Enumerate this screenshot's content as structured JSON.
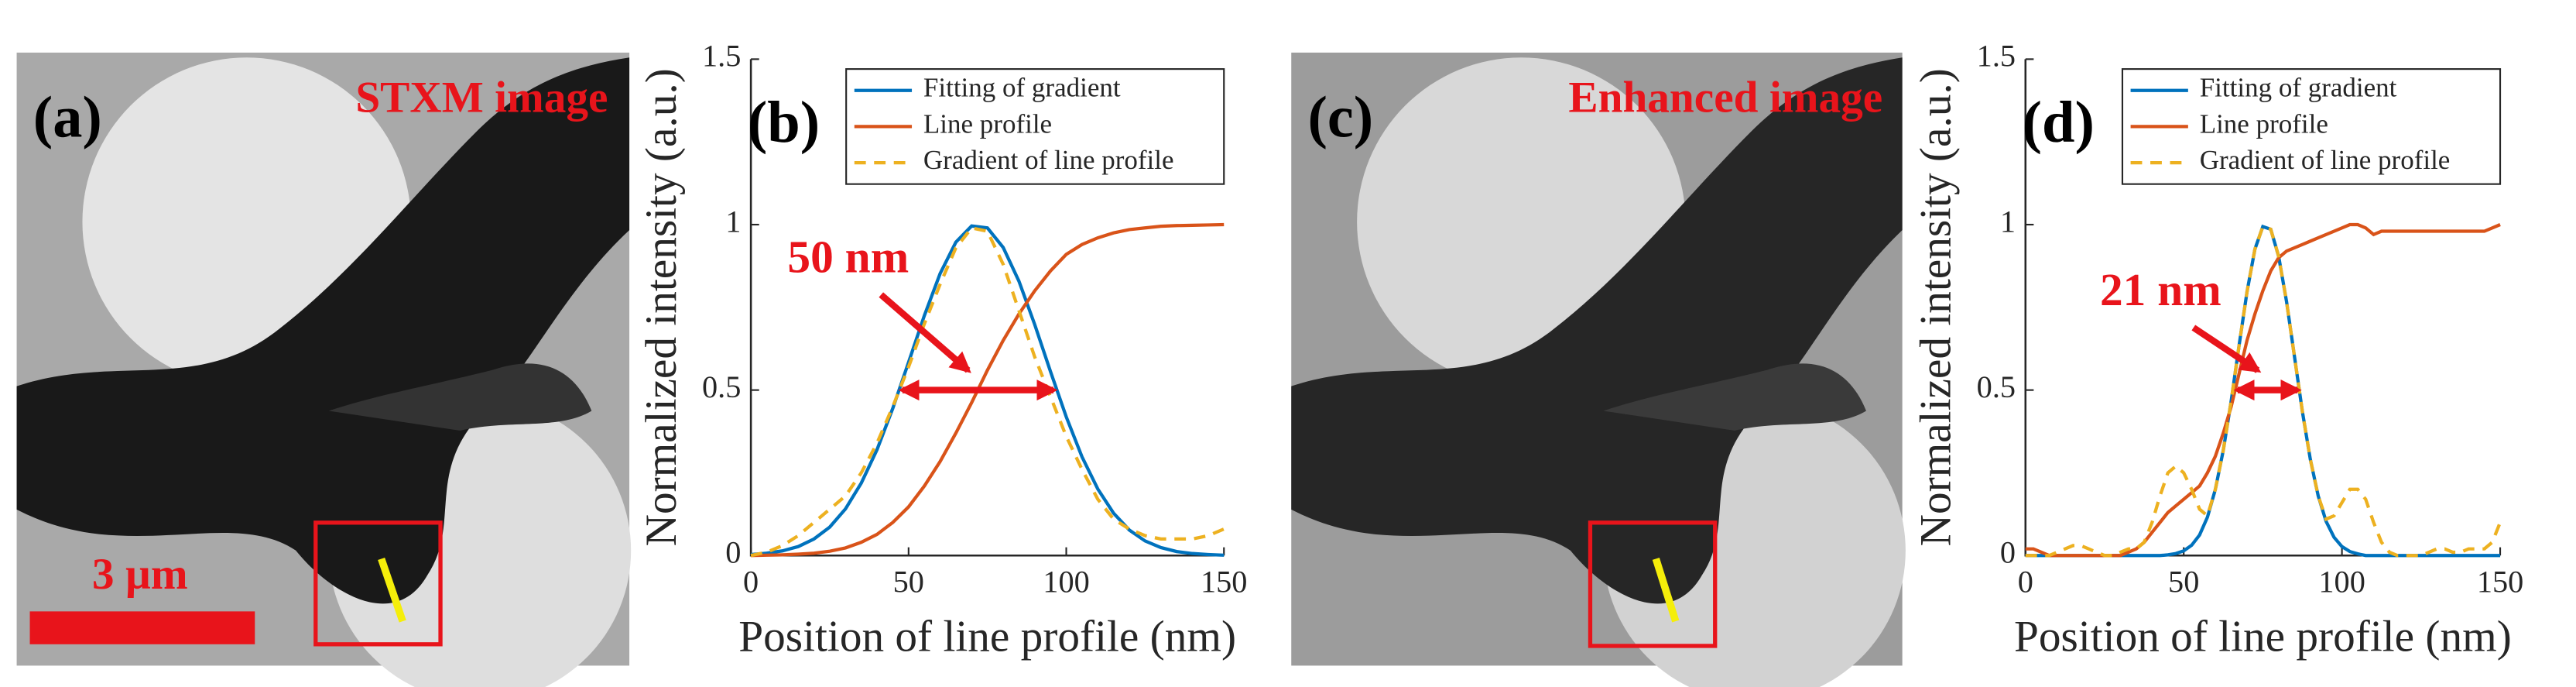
{
  "images": [
    {
      "label": "(a)",
      "title": "STXM image",
      "scale_bar": "3 µm"
    },
    {
      "label": "(c)",
      "title": "Enhanced image"
    }
  ],
  "chart_data": [
    {
      "type": "line",
      "label": "(b)",
      "xlabel": "Position of line profile (nm)",
      "ylabel": "Normalized intensity (a.u.)",
      "xlim": [
        0,
        150
      ],
      "ylim": [
        0,
        1.5
      ],
      "xticks": [
        0,
        50,
        100,
        150
      ],
      "yticks": [
        0,
        0.5,
        1,
        1.5
      ],
      "legend": "upper right",
      "annotation": {
        "text": "50 nm",
        "x": [
          47,
          97
        ],
        "y": 0.5
      },
      "x": [
        0,
        5,
        10,
        15,
        20,
        25,
        30,
        35,
        40,
        45,
        50,
        55,
        60,
        65,
        70,
        75,
        80,
        85,
        90,
        95,
        100,
        105,
        110,
        115,
        120,
        125,
        130,
        135,
        140,
        145,
        150
      ],
      "series": [
        {
          "name": "Fitting of gradient",
          "color": "#0072BD",
          "dash": false,
          "values": [
            0.003,
            0.007,
            0.014,
            0.027,
            0.05,
            0.086,
            0.141,
            0.219,
            0.32,
            0.445,
            0.584,
            0.725,
            0.852,
            0.947,
            0.996,
            0.99,
            0.931,
            0.829,
            0.698,
            0.556,
            0.419,
            0.298,
            0.201,
            0.128,
            0.077,
            0.044,
            0.024,
            0.012,
            0.006,
            0.003,
            0.001
          ]
        },
        {
          "name": "Line profile",
          "color": "#D95319",
          "dash": false,
          "values": [
            0,
            0.001,
            0.002,
            0.004,
            0.007,
            0.013,
            0.023,
            0.04,
            0.064,
            0.1,
            0.147,
            0.21,
            0.284,
            0.37,
            0.462,
            0.56,
            0.65,
            0.73,
            0.8,
            0.86,
            0.91,
            0.94,
            0.96,
            0.975,
            0.985,
            0.99,
            0.995,
            0.997,
            0.998,
            0.999,
            1
          ]
        },
        {
          "name": "Gradient of line profile",
          "color": "#EDB120",
          "dash": true,
          "values": [
            0,
            0.01,
            0.03,
            0.06,
            0.1,
            0.14,
            0.18,
            0.25,
            0.34,
            0.45,
            0.57,
            0.7,
            0.82,
            0.93,
            0.99,
            0.98,
            0.88,
            0.74,
            0.6,
            0.48,
            0.36,
            0.26,
            0.17,
            0.11,
            0.08,
            0.06,
            0.05,
            0.05,
            0.05,
            0.06,
            0.08
          ]
        }
      ]
    },
    {
      "type": "line",
      "label": "(d)",
      "xlabel": "Position of line profile (nm)",
      "ylabel": "Normalized intensity (a.u.)",
      "xlim": [
        0,
        150
      ],
      "ylim": [
        0,
        1.5
      ],
      "xticks": [
        0,
        50,
        100,
        150
      ],
      "yticks": [
        0,
        0.5,
        1,
        1.5
      ],
      "legend": "upper right",
      "annotation": {
        "text": "21 nm",
        "x": [
          66,
          87
        ],
        "y": 0.5
      },
      "x": [
        0,
        2.5,
        5,
        7.5,
        10,
        12.5,
        15,
        17.5,
        20,
        22.5,
        25,
        27.5,
        30,
        32.5,
        35,
        37.5,
        40,
        42.5,
        45,
        47.5,
        50,
        52.5,
        55,
        57.5,
        60,
        62.5,
        65,
        67.5,
        70,
        72.5,
        75,
        77.5,
        80,
        82.5,
        85,
        87.5,
        90,
        92.5,
        95,
        97.5,
        100,
        102.5,
        105,
        107.5,
        110,
        112.5,
        115,
        117.5,
        120,
        122.5,
        125,
        127.5,
        130,
        132.5,
        135,
        137.5,
        140,
        142.5,
        145,
        147.5,
        150
      ],
      "series": [
        {
          "name": "Fitting of gradient",
          "color": "#0072BD",
          "dash": false,
          "values": [
            0,
            0,
            0,
            0,
            0,
            0,
            0,
            0,
            0,
            0,
            0,
            0,
            0,
            0,
            0,
            0,
            0,
            0,
            0.002,
            0.006,
            0.014,
            0.031,
            0.062,
            0.116,
            0.2,
            0.318,
            0.467,
            0.635,
            0.797,
            0.926,
            0.994,
            0.986,
            0.904,
            0.767,
            0.601,
            0.435,
            0.291,
            0.18,
            0.103,
            0.055,
            0.027,
            0.012,
            0.005,
            0,
            0,
            0,
            0,
            0,
            0,
            0,
            0,
            0,
            0,
            0,
            0,
            0,
            0,
            0,
            0,
            0,
            0
          ]
        },
        {
          "name": "Line profile",
          "color": "#D95319",
          "dash": false,
          "values": [
            0.02,
            0.02,
            0.01,
            0,
            0,
            0,
            0,
            0,
            0,
            0,
            0,
            0,
            0,
            0.01,
            0.02,
            0.04,
            0.07,
            0.1,
            0.13,
            0.15,
            0.17,
            0.19,
            0.21,
            0.25,
            0.3,
            0.37,
            0.45,
            0.55,
            0.65,
            0.73,
            0.8,
            0.86,
            0.9,
            0.92,
            0.93,
            0.94,
            0.95,
            0.96,
            0.97,
            0.98,
            0.99,
            1,
            1,
            0.99,
            0.97,
            0.98,
            0.98,
            0.98,
            0.98,
            0.98,
            0.98,
            0.98,
            0.98,
            0.98,
            0.98,
            0.98,
            0.98,
            0.98,
            0.98,
            0.99,
            1
          ]
        },
        {
          "name": "Gradient of line profile",
          "color": "#EDB120",
          "dash": true,
          "values": [
            0,
            0,
            0,
            0,
            0.01,
            0.02,
            0.03,
            0.03,
            0.02,
            0.01,
            0,
            0,
            0.01,
            0.02,
            0.02,
            0.04,
            0.1,
            0.18,
            0.25,
            0.27,
            0.25,
            0.2,
            0.14,
            0.12,
            0.2,
            0.318,
            0.467,
            0.635,
            0.797,
            0.926,
            0.994,
            0.986,
            0.904,
            0.767,
            0.601,
            0.435,
            0.291,
            0.18,
            0.11,
            0.12,
            0.16,
            0.2,
            0.2,
            0.17,
            0.1,
            0.04,
            0.01,
            0,
            0,
            0,
            0,
            0.01,
            0.02,
            0.02,
            0.01,
            0.01,
            0.02,
            0.02,
            0.02,
            0.04,
            0.1
          ]
        }
      ]
    }
  ]
}
